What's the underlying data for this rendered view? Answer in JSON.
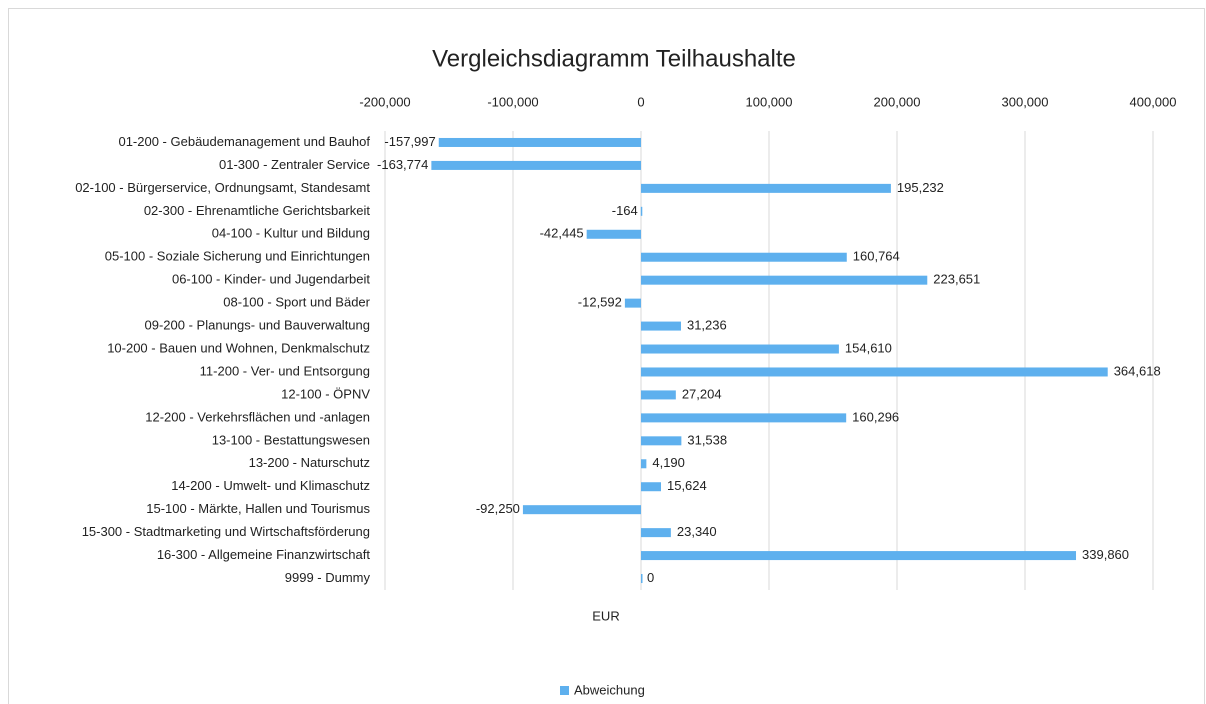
{
  "chart_data": {
    "type": "bar",
    "title": "Vergleichsdiagramm Teilhaushalte",
    "xlabel": "EUR",
    "categories": [
      "01-200 - Gebäudemanagement und Bauhof",
      "01-300 - Zentraler Service",
      "02-100 - Bürgerservice, Ordnungsamt, Standesamt",
      "02-300 - Ehrenamtliche Gerichtsbarkeit",
      "04-100 - Kultur und Bildung",
      "05-100 - Soziale Sicherung und Einrichtungen",
      "06-100 - Kinder- und Jugendarbeit",
      "08-100 - Sport und Bäder",
      "09-200 - Planungs- und Bauverwaltung",
      "10-200 - Bauen und Wohnen, Denkmalschutz",
      "11-200 - Ver- und Entsorgung",
      "12-100 - ÖPNV",
      "12-200 - Verkehrsflächen und -anlagen",
      "13-100 - Bestattungswesen",
      "13-200 - Naturschutz",
      "14-200 - Umwelt- und Klimaschutz",
      "15-100 - Märkte, Hallen und Tourismus",
      "15-300 - Stadtmarketing und Wirtschaftsförderung",
      "16-300 - Allgemeine Finanzwirtschaft",
      "9999 - Dummy"
    ],
    "series": [
      {
        "name": "Abweichung",
        "color": "#5eb0ee",
        "values": [
          -157997,
          -163774,
          195232,
          -164,
          -42445,
          160764,
          223651,
          -12592,
          31236,
          154610,
          364618,
          27204,
          160296,
          31538,
          4190,
          15624,
          -92250,
          23340,
          339860,
          0
        ],
        "value_labels": [
          "-157,997",
          "-163,774",
          "195,232",
          "-164",
          "-42,445",
          "160,764",
          "223,651",
          "-12,592",
          "31,236",
          "154,610",
          "364,618",
          "27,204",
          "160,296",
          "31,538",
          "4,190",
          "15,624",
          "-92,250",
          "23,340",
          "339,860",
          "0"
        ]
      }
    ],
    "xlim": [
      -200000,
      400000
    ],
    "xticks": [
      {
        "value": -200000,
        "label": "-200,000"
      },
      {
        "value": -100000,
        "label": "-100,000"
      },
      0,
      {
        "value": 100000,
        "label": "100,000"
      },
      {
        "value": 200000,
        "label": "200,000"
      },
      {
        "value": 300000,
        "label": "300,000"
      },
      {
        "value": 400000,
        "label": "400,000"
      }
    ],
    "grid": true,
    "legend": "bottom"
  }
}
